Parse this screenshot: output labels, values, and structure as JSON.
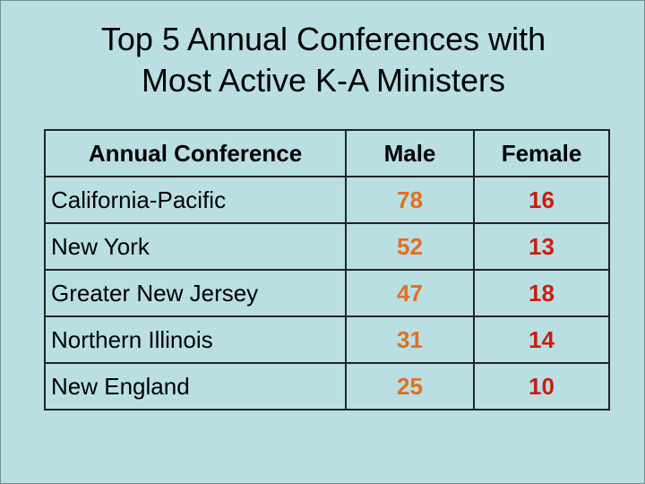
{
  "title": {
    "line1": "Top 5 Annual Conferences with",
    "line2": "Most Active K-A Ministers"
  },
  "table": {
    "headers": [
      "Annual Conference",
      "Male",
      "Female"
    ],
    "rows": [
      {
        "conference": "California-Pacific",
        "male": "78",
        "female": "16"
      },
      {
        "conference": "New York",
        "male": "52",
        "female": "13"
      },
      {
        "conference": "Greater New Jersey",
        "male": "47",
        "female": "18"
      },
      {
        "conference": "Northern Illinois",
        "male": "31",
        "female": "14"
      },
      {
        "conference": "New England",
        "male": "25",
        "female": "10"
      }
    ]
  },
  "colors": {
    "background": "#b9dfe3",
    "male_value": "#e07020",
    "female_value": "#c81e10"
  }
}
